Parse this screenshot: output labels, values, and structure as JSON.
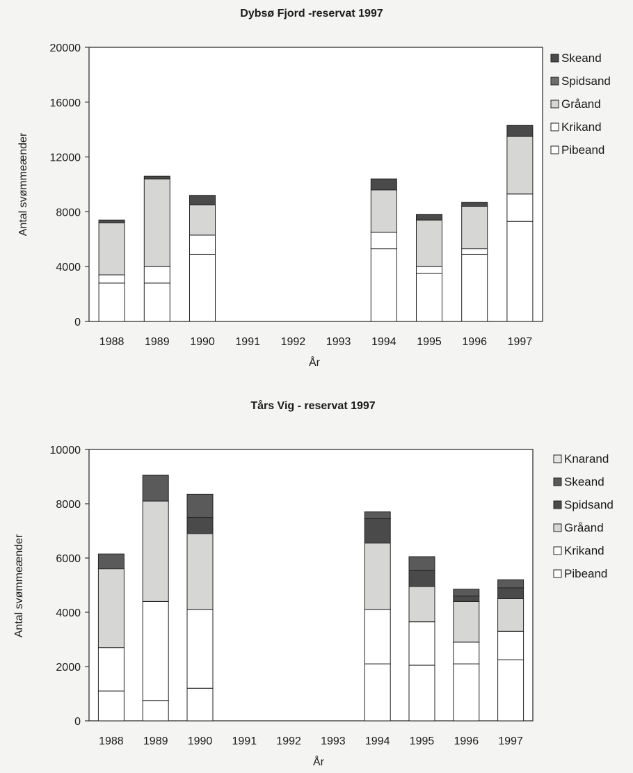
{
  "charts": [
    {
      "type": "bar",
      "stacked": true,
      "title": "Dybsø Fjord  -reservat 1997",
      "xlabel": "År",
      "ylabel": "Antal svømmeænder",
      "ylim": [
        0,
        20000
      ],
      "yticks": [
        0,
        4000,
        8000,
        12000,
        16000,
        20000
      ],
      "categories": [
        "1988",
        "1989",
        "1990",
        "1991",
        "1992",
        "1993",
        "1994",
        "1995",
        "1996",
        "1997"
      ],
      "legend": [
        "Skeand",
        "Spidsand",
        "Gråand",
        "Krikand",
        "Pibeand"
      ],
      "series": [
        {
          "name": "Pibeand",
          "color": "#ffffff",
          "values": [
            2800,
            2800,
            4900,
            0,
            0,
            0,
            5300,
            3500,
            4900,
            7300
          ]
        },
        {
          "name": "Krikand",
          "color": "#ffffff",
          "values": [
            600,
            1200,
            1400,
            0,
            0,
            0,
            1200,
            500,
            400,
            2000
          ]
        },
        {
          "name": "Gråand",
          "color": "#d6d6d4",
          "values": [
            3800,
            6400,
            2200,
            0,
            0,
            0,
            3100,
            3400,
            3100,
            4200
          ]
        },
        {
          "name": "Spidsand",
          "color": "#6e6e6e",
          "values": [
            0,
            0,
            0,
            0,
            0,
            0,
            0,
            0,
            0,
            0
          ]
        },
        {
          "name": "Skeand",
          "color": "#4a4a4a",
          "values": [
            200,
            200,
            700,
            0,
            0,
            0,
            800,
            400,
            300,
            800
          ]
        }
      ]
    },
    {
      "type": "bar",
      "stacked": true,
      "title": "Tårs Vig - reservat 1997",
      "xlabel": "År",
      "ylabel": "Antal svømmeænder",
      "ylim": [
        0,
        10000
      ],
      "yticks": [
        0,
        2000,
        4000,
        6000,
        8000,
        10000
      ],
      "categories": [
        "1988",
        "1989",
        "1990",
        "1991",
        "1992",
        "1993",
        "1994",
        "1995",
        "1996",
        "1997"
      ],
      "legend": [
        "Knarand",
        "Skeand",
        "Spidsand",
        "Gråand",
        "Krikand",
        "Pibeand"
      ],
      "series": [
        {
          "name": "Pibeand",
          "color": "#ffffff",
          "values": [
            1100,
            750,
            1200,
            0,
            0,
            0,
            2100,
            2050,
            2100,
            2250
          ]
        },
        {
          "name": "Krikand",
          "color": "#ffffff",
          "values": [
            1600,
            3650,
            2900,
            0,
            0,
            0,
            2000,
            1600,
            800,
            1050
          ]
        },
        {
          "name": "Gråand",
          "color": "#d6d6d4",
          "values": [
            2900,
            3700,
            2800,
            0,
            0,
            0,
            2450,
            1300,
            1500,
            1200
          ]
        },
        {
          "name": "Spidsand",
          "color": "#4a4a4a",
          "values": [
            0,
            0,
            600,
            0,
            0,
            0,
            900,
            600,
            200,
            400
          ]
        },
        {
          "name": "Skeand",
          "color": "#5a5a5a",
          "values": [
            550,
            950,
            850,
            0,
            0,
            0,
            250,
            500,
            250,
            300
          ]
        },
        {
          "name": "Knarand",
          "color": "#e6e6e4",
          "values": [
            0,
            0,
            0,
            0,
            0,
            0,
            0,
            0,
            0,
            0
          ]
        }
      ]
    }
  ]
}
